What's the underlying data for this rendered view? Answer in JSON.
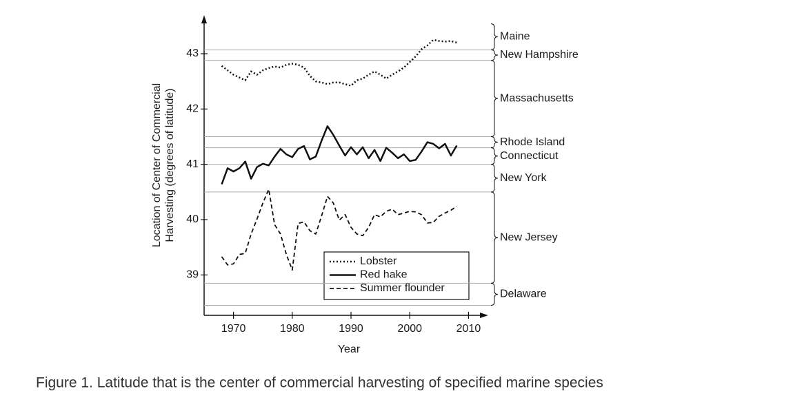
{
  "chart_data": {
    "type": "line",
    "xlabel": "Year",
    "ylabel": [
      "Location of Center of Commercial",
      "Harvesting (degrees of latitude)"
    ],
    "x": [
      1968,
      1969,
      1970,
      1971,
      1972,
      1973,
      1974,
      1975,
      1976,
      1977,
      1978,
      1979,
      1980,
      1981,
      1982,
      1983,
      1984,
      1985,
      1986,
      1987,
      1988,
      1989,
      1990,
      1991,
      1992,
      1993,
      1994,
      1995,
      1996,
      1997,
      1998,
      1999,
      2000,
      2001,
      2002,
      2003,
      2004,
      2005,
      2006,
      2007,
      2008
    ],
    "series": [
      {
        "name": "Lobster",
        "color": "#111111",
        "style": "dotted",
        "values": [
          42.78,
          42.7,
          42.62,
          42.57,
          42.52,
          42.68,
          42.62,
          42.7,
          42.74,
          42.77,
          42.75,
          42.8,
          42.82,
          42.8,
          42.75,
          42.6,
          42.5,
          42.48,
          42.45,
          42.48,
          42.48,
          42.45,
          42.42,
          42.52,
          42.55,
          42.62,
          42.68,
          42.62,
          42.55,
          42.62,
          42.68,
          42.75,
          42.85,
          42.95,
          43.08,
          43.15,
          43.25,
          43.23,
          43.22,
          43.23,
          43.2
        ]
      },
      {
        "name": "Red hake",
        "color": "#111111",
        "style": "solid",
        "values": [
          40.64,
          40.93,
          40.87,
          40.93,
          41.05,
          40.74,
          40.95,
          41.01,
          40.98,
          41.14,
          41.28,
          41.18,
          41.13,
          41.28,
          41.33,
          41.09,
          41.14,
          41.43,
          41.69,
          41.53,
          41.34,
          41.16,
          41.31,
          41.18,
          41.31,
          41.11,
          41.26,
          41.06,
          41.3,
          41.21,
          41.11,
          41.18,
          41.06,
          41.08,
          41.23,
          41.4,
          41.37,
          41.29,
          41.37,
          41.16,
          41.34
        ]
      },
      {
        "name": "Summer flounder",
        "color": "#111111",
        "style": "dashed",
        "values": [
          39.33,
          39.18,
          39.2,
          39.37,
          39.39,
          39.74,
          40.01,
          40.3,
          40.55,
          39.91,
          39.74,
          39.37,
          39.09,
          39.93,
          39.96,
          39.8,
          39.74,
          40.07,
          40.42,
          40.3,
          39.99,
          40.09,
          39.86,
          39.74,
          39.71,
          39.86,
          40.09,
          40.05,
          40.15,
          40.19,
          40.09,
          40.12,
          40.15,
          40.14,
          40.09,
          39.94,
          39.95,
          40.06,
          40.12,
          40.17,
          40.24
        ]
      }
    ],
    "xlim": [
      1965,
      2013
    ],
    "ylim": [
      38.27,
      43.66
    ],
    "xticks": [
      1970,
      1980,
      1990,
      2000,
      2010
    ],
    "yticks": [
      39,
      40,
      41,
      42,
      43
    ],
    "regions": [
      {
        "name": "Maine",
        "from": 43.07,
        "to": 43.54
      },
      {
        "name": "New Hampshire",
        "from": 42.88,
        "to": 43.07
      },
      {
        "name": "Massachusetts",
        "from": 41.5,
        "to": 42.88
      },
      {
        "name": "Rhode Island",
        "from": 41.3,
        "to": 41.5
      },
      {
        "name": "Connecticut",
        "from": 41.0,
        "to": 41.3
      },
      {
        "name": "New York",
        "from": 40.5,
        "to": 41.0
      },
      {
        "name": "New Jersey",
        "from": 38.85,
        "to": 40.5
      },
      {
        "name": "Delaware",
        "from": 38.45,
        "to": 38.85
      }
    ]
  },
  "caption": "Figure 1. Latitude that is the center of commercial harvesting of specified marine species"
}
